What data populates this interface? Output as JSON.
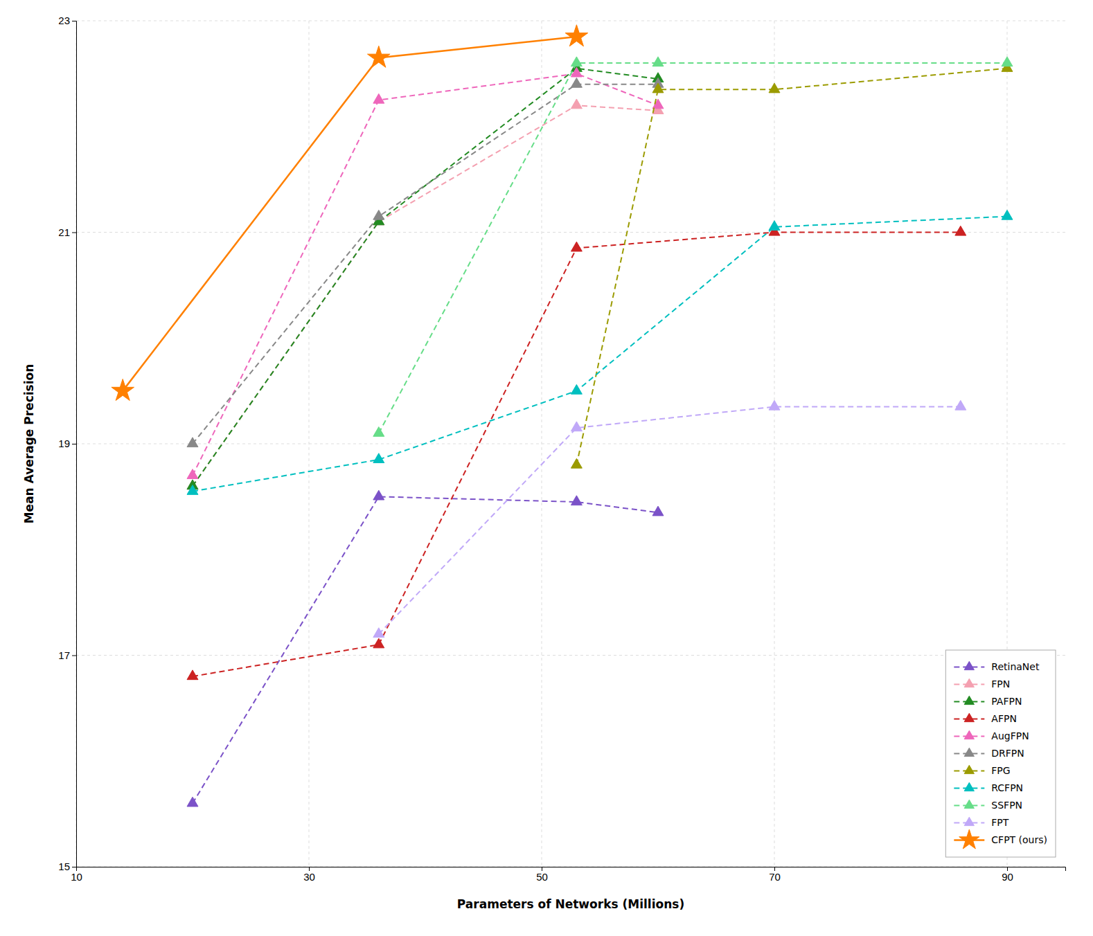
{
  "chart_data": {
    "type": "line",
    "xlabel": "Parameters of Networks (Millions)",
    "ylabel": "Mean Average Precision",
    "xlim": [
      10,
      95
    ],
    "ylim": [
      15,
      23
    ],
    "xticks": [
      10,
      30,
      50,
      70,
      90
    ],
    "yticks": [
      15,
      17,
      19,
      21,
      23
    ],
    "grid": true,
    "legend": "lower right",
    "series": [
      {
        "name": "RetinaNet",
        "color": "#7B52C8",
        "line_style": "dashed",
        "marker": "triangle",
        "x": [
          20,
          36,
          53,
          60
        ],
        "values": [
          15.6,
          18.5,
          18.45,
          18.35
        ]
      },
      {
        "name": "FPN",
        "color": "#F4A0B0",
        "line_style": "dashed",
        "marker": "triangle",
        "x": [
          20,
          36,
          53,
          60
        ],
        "values": [
          18.6,
          21.1,
          22.2,
          22.15
        ]
      },
      {
        "name": "PAFPN",
        "color": "#228B22",
        "line_style": "dashed",
        "marker": "triangle",
        "x": [
          20,
          36,
          53,
          60
        ],
        "values": [
          18.6,
          21.1,
          22.55,
          22.45
        ]
      },
      {
        "name": "AFPN",
        "color": "#CC2222",
        "line_style": "dashed",
        "marker": "triangle",
        "x": [
          20,
          36,
          53,
          70,
          86
        ],
        "values": [
          16.8,
          17.1,
          20.85,
          21.0,
          21.0
        ]
      },
      {
        "name": "AugFPN",
        "color": "#EE66BB",
        "line_style": "dashed",
        "marker": "triangle",
        "x": [
          20,
          36,
          53,
          60
        ],
        "values": [
          18.7,
          22.25,
          22.5,
          22.2
        ]
      },
      {
        "name": "DRFPN",
        "color": "#888888",
        "line_style": "dashed",
        "marker": "triangle",
        "x": [
          20,
          36,
          53,
          60
        ],
        "values": [
          19.0,
          21.15,
          22.4,
          22.4
        ]
      },
      {
        "name": "FPG",
        "color": "#9B9B00",
        "line_style": "dashed",
        "marker": "triangle",
        "x": [
          53,
          60,
          70,
          90
        ],
        "values": [
          18.8,
          22.35,
          22.35,
          22.55
        ]
      },
      {
        "name": "RCFPN",
        "color": "#00BFBF",
        "line_style": "dashed",
        "marker": "triangle",
        "x": [
          20,
          36,
          53,
          70,
          90
        ],
        "values": [
          18.55,
          18.85,
          19.5,
          21.05,
          21.15
        ]
      },
      {
        "name": "SSFPN",
        "color": "#66DD88",
        "line_style": "dashed",
        "marker": "triangle",
        "x": [
          36,
          53,
          60,
          90
        ],
        "values": [
          19.1,
          22.6,
          22.6,
          22.6
        ]
      },
      {
        "name": "FPT",
        "color": "#C0A8F8",
        "line_style": "dashed",
        "marker": "triangle",
        "x": [
          36,
          53,
          70,
          86
        ],
        "values": [
          17.2,
          19.15,
          19.35,
          19.35
        ]
      },
      {
        "name": "CFPT (ours)",
        "color": "#FF8000",
        "line_style": "solid",
        "marker": "star",
        "x": [
          14,
          36,
          53
        ],
        "values": [
          19.5,
          22.65,
          22.85
        ]
      }
    ]
  }
}
